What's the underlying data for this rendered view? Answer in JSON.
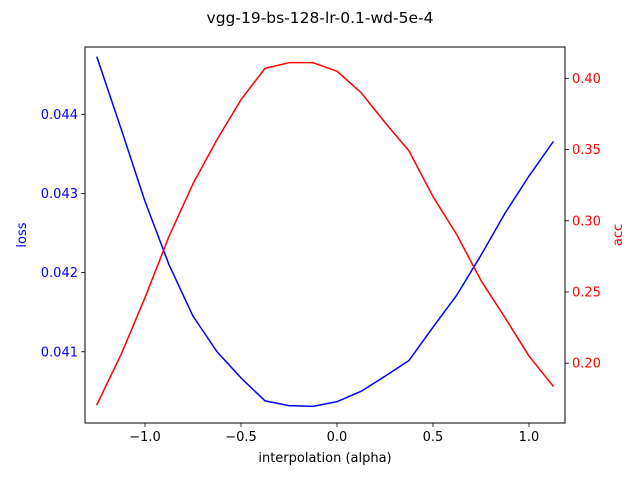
{
  "chart_data": {
    "type": "line",
    "title": "vgg-19-bs-128-lr-0.1-wd-5e-4",
    "xlabel": "interpolation (alpha)",
    "xlim": [
      -1.3125,
      1.1875
    ],
    "x_ticks": [
      {
        "value": -1.0,
        "label": "−1.0"
      },
      {
        "value": -0.5,
        "label": "−0.5"
      },
      {
        "value": 0.0,
        "label": "0.0"
      },
      {
        "value": 0.5,
        "label": "0.5"
      },
      {
        "value": 1.0,
        "label": "1.0"
      }
    ],
    "x": [
      -1.25,
      -1.125,
      -1.0,
      -0.875,
      -0.75,
      -0.625,
      -0.5,
      -0.375,
      -0.25,
      -0.125,
      0.0,
      0.125,
      0.25,
      0.375,
      0.5,
      0.625,
      0.75,
      0.875,
      1.0,
      1.125
    ],
    "grid": false,
    "axes": {
      "left": {
        "label": "loss",
        "color": "#0000ff",
        "ylim": [
          0.0401,
          0.04485
        ],
        "ticks": [
          {
            "value": 0.041,
            "label": "0.041"
          },
          {
            "value": 0.042,
            "label": "0.042"
          },
          {
            "value": 0.043,
            "label": "0.043"
          },
          {
            "value": 0.044,
            "label": "0.044"
          }
        ]
      },
      "right": {
        "label": "acc",
        "color": "#ff0000",
        "ylim": [
          0.158,
          0.422
        ],
        "ticks": [
          {
            "value": 0.2,
            "label": "0.20"
          },
          {
            "value": 0.25,
            "label": "0.25"
          },
          {
            "value": 0.3,
            "label": "0.30"
          },
          {
            "value": 0.35,
            "label": "0.35"
          },
          {
            "value": 0.4,
            "label": "0.40"
          }
        ]
      }
    },
    "series": [
      {
        "axis": "left",
        "color": "#0000ff",
        "values": [
          0.04472,
          0.04382,
          0.0429,
          0.0421,
          0.04145,
          0.041,
          0.04067,
          0.04038,
          0.04032,
          0.04031,
          0.04037,
          0.0405,
          0.04069,
          0.04089,
          0.04131,
          0.04172,
          0.04222,
          0.04275,
          0.04322,
          0.04365
        ]
      },
      {
        "axis": "right",
        "color": "#ff0000",
        "values": [
          0.171,
          0.206,
          0.246,
          0.289,
          0.326,
          0.357,
          0.385,
          0.407,
          0.411,
          0.411,
          0.405,
          0.39,
          0.369,
          0.349,
          0.317,
          0.29,
          0.258,
          0.232,
          0.205,
          0.184
        ]
      }
    ]
  }
}
